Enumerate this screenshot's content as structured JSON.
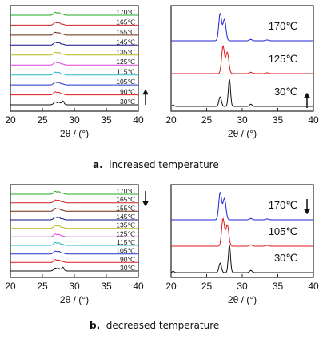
{
  "colors": {
    "170": "#22aa22",
    "165": "#cc2222",
    "155": "#6b2b10",
    "145": "#101080",
    "135": "#b8b818",
    "125": "#e040e0",
    "115": "#20b8c8",
    "105": "#2233cc",
    "90": "#e01818",
    "30": "#111111"
  },
  "captions": {
    "a_letter": "a.",
    "a_text": "increased temperature",
    "b_letter": "b.",
    "b_text": "decreased temperature"
  },
  "chart_data": [
    {
      "panel": "a-left",
      "type": "line",
      "xlabel": "2θ / (°)",
      "xlim": [
        20,
        40
      ],
      "xticks": [
        20,
        25,
        30,
        35,
        40
      ],
      "arrow": "up",
      "peaks": [
        27.0,
        27.6,
        28.2
      ],
      "series": [
        {
          "name": "170℃",
          "color_key": "170"
        },
        {
          "name": "165℃",
          "color_key": "165"
        },
        {
          "name": "155℃",
          "color_key": "155"
        },
        {
          "name": "145℃",
          "color_key": "145"
        },
        {
          "name": "135℃",
          "color_key": "135"
        },
        {
          "name": "125℃",
          "color_key": "125"
        },
        {
          "name": "115℃",
          "color_key": "115"
        },
        {
          "name": "105℃",
          "color_key": "105"
        },
        {
          "name": "90℃",
          "color_key": "90"
        },
        {
          "name": "30℃",
          "color_key": "30"
        }
      ]
    },
    {
      "panel": "a-right",
      "type": "line",
      "xlabel": "2θ / (°)",
      "xlim": [
        20,
        40
      ],
      "xticks": [
        20,
        25,
        30,
        35,
        40
      ],
      "arrow": "up",
      "series": [
        {
          "name": "170℃",
          "color": "#1f23d6",
          "peaks": [
            26.9,
            27.5
          ]
        },
        {
          "name": "125℃",
          "color": "#e01818",
          "peaks": [
            27.3,
            27.9
          ]
        },
        {
          "name": "30℃",
          "color": "#111111",
          "peaks": [
            26.9,
            28.2
          ]
        }
      ]
    },
    {
      "panel": "b-left",
      "type": "line",
      "xlabel": "2θ / (°)",
      "xlim": [
        20,
        40
      ],
      "xticks": [
        20,
        25,
        30,
        35,
        40
      ],
      "arrow": "down",
      "peaks": [
        27.0,
        27.6,
        28.2
      ],
      "series": [
        {
          "name": "170℃",
          "color_key": "170"
        },
        {
          "name": "165℃",
          "color_key": "165"
        },
        {
          "name": "155℃",
          "color_key": "155"
        },
        {
          "name": "145℃",
          "color_key": "145"
        },
        {
          "name": "135℃",
          "color_key": "135"
        },
        {
          "name": "125℃",
          "color_key": "125"
        },
        {
          "name": "115℃",
          "color_key": "115"
        },
        {
          "name": "105℃",
          "color_key": "105"
        },
        {
          "name": "90℃",
          "color_key": "90"
        },
        {
          "name": "30℃",
          "color_key": "30"
        }
      ]
    },
    {
      "panel": "b-right",
      "type": "line",
      "xlabel": "2θ / (°)",
      "xlim": [
        20,
        40
      ],
      "xticks": [
        20,
        25,
        30,
        35,
        40
      ],
      "arrow": "down",
      "series": [
        {
          "name": "170℃",
          "color": "#1f23d6",
          "peaks": [
            26.9,
            27.5
          ]
        },
        {
          "name": "105℃",
          "color": "#e01818",
          "peaks": [
            27.3,
            27.9
          ]
        },
        {
          "name": "30℃",
          "color": "#111111",
          "peaks": [
            26.9,
            28.2
          ]
        }
      ]
    }
  ]
}
